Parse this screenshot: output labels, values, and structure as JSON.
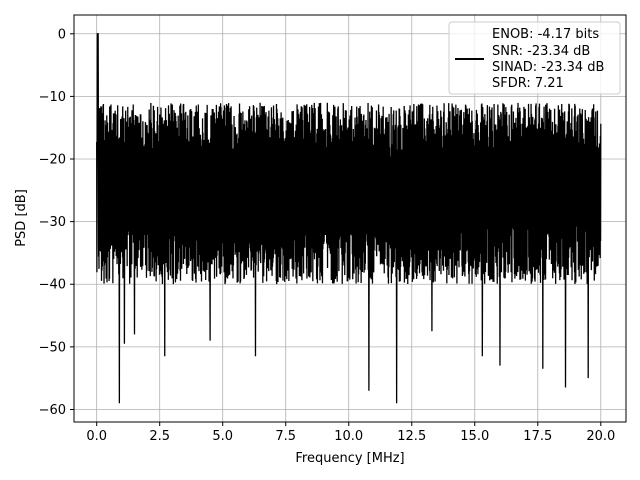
{
  "chart_data": {
    "type": "line",
    "xlabel": "Frequency [MHz]",
    "ylabel": "PSD [dB]",
    "xlim": [
      -0.9,
      21.0
    ],
    "ylim": [
      -62.0,
      3.0
    ],
    "x_ticks": [
      0.0,
      2.5,
      5.0,
      7.5,
      10.0,
      12.5,
      15.0,
      17.5,
      20.0
    ],
    "x_tick_labels": [
      "0.0",
      "2.5",
      "5.0",
      "7.5",
      "10.0",
      "12.5",
      "15.0",
      "17.5",
      "20.0"
    ],
    "y_ticks": [
      0,
      -10,
      -20,
      -30,
      -40,
      -50,
      -60
    ],
    "y_tick_labels": [
      "0",
      "−10",
      "−20",
      "−30",
      "−40",
      "−50",
      "−60"
    ],
    "grid": true,
    "legend_position": "top-right",
    "series": [
      {
        "color": "#000000",
        "x_range": [
          0.0,
          20.0
        ],
        "peak": {
          "x": 0.04,
          "y": 0.0
        },
        "typical_top_db": -13.5,
        "typical_bottom_db": -36.0,
        "x_dip_points": [
          [
            0.9,
            -59.0
          ],
          [
            1.1,
            -49.5
          ],
          [
            1.5,
            -48.0
          ],
          [
            2.7,
            -51.5
          ],
          [
            4.5,
            -49.0
          ],
          [
            6.3,
            -51.5
          ],
          [
            10.8,
            -57.0
          ],
          [
            11.9,
            -59.0
          ],
          [
            13.3,
            -47.5
          ],
          [
            15.3,
            -51.5
          ],
          [
            16.0,
            -53.0
          ],
          [
            17.7,
            -53.5
          ],
          [
            18.6,
            -56.5
          ],
          [
            19.5,
            -55.0
          ]
        ]
      }
    ],
    "legend": {
      "lines": [
        "ENOB: -4.17 bits",
        "SNR: -23.34 dB",
        "SINAD: -23.34 dB",
        "SFDR: 7.21"
      ]
    }
  }
}
